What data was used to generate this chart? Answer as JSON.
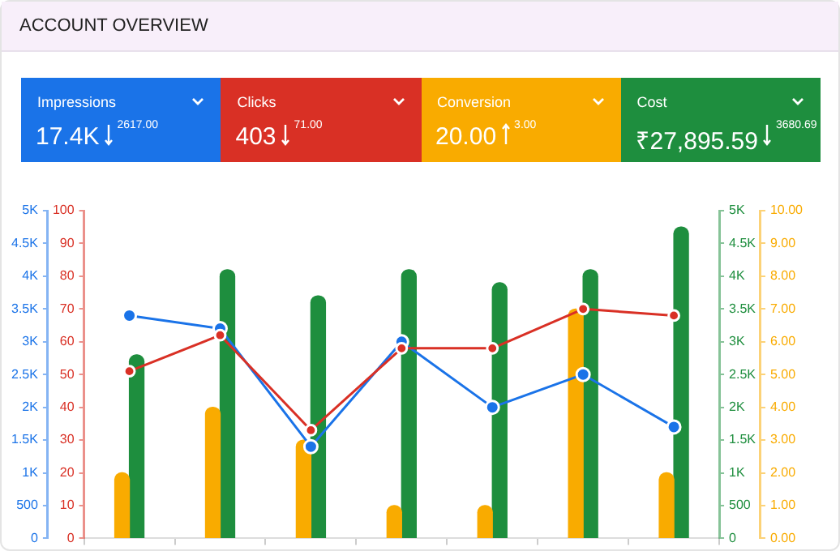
{
  "chart_data": [
    {
      "type": "other",
      "title": "ACCOUNT OVERVIEW",
      "colors": [
        "#1a73e8",
        "#d93025",
        "#f9ab00",
        "#1e8e3e"
      ],
      "annotations": [
        "Impressions",
        "17.4K",
        "2617.00",
        "Clicks",
        "403",
        "71.00",
        "Conversion",
        "20.00",
        "3.00",
        "Cost",
        "₹27,895.59",
        "3680.69"
      ]
    },
    {
      "type": "bar",
      "categories": [
        null,
        null,
        null,
        null,
        null,
        null,
        null
      ],
      "tick_labels": "y",
      "marker": "circle",
      "series": [
        {
          "type": "line",
          "axis": "y",
          "color": "#1a73e8",
          "values": [
            3400,
            3200,
            1400,
            3000,
            2000,
            2500,
            1700
          ]
        },
        {
          "type": "line",
          "axis": "y2",
          "color": "#d93025",
          "values": [
            51,
            62,
            33,
            58,
            58,
            70,
            68
          ]
        },
        {
          "axis": "y3",
          "color": "#f9ab00",
          "values": [
            2,
            4,
            3,
            1,
            1,
            7,
            2
          ]
        },
        {
          "color": "#1e8e3e",
          "values": [
            2800,
            4100,
            3700,
            4100,
            3900,
            4100,
            4750
          ]
        }
      ],
      "ylim": [
        0,
        5000
      ],
      "yticks": [
        {
          "value": 0,
          "label": "0"
        },
        {
          "value": 500,
          "label": "500"
        },
        {
          "value": 1000,
          "label": "1K"
        },
        {
          "value": 1500,
          "label": "1.5K"
        },
        {
          "value": 2000,
          "label": "2K"
        },
        {
          "value": 2500,
          "label": "2.5K"
        },
        {
          "value": 3000,
          "label": "3K"
        },
        {
          "value": 3500,
          "label": "3.5K"
        },
        {
          "value": 4000,
          "label": "4K"
        },
        {
          "value": 4500,
          "label": "4.5K"
        },
        {
          "value": 5000,
          "label": "5K"
        }
      ],
      "y2lim": [
        0,
        100
      ],
      "y2ticks": [
        0,
        10,
        20,
        30,
        40,
        50,
        60,
        70,
        80,
        90,
        100
      ],
      "y3lim": [
        0,
        10
      ],
      "y3ticks": [
        {
          "value": 0,
          "label": "0.00"
        },
        {
          "value": 1,
          "label": "1.00"
        },
        {
          "value": 2,
          "label": "2.00"
        },
        {
          "value": 3,
          "label": "3.00"
        },
        {
          "value": 4,
          "label": "4.00"
        },
        {
          "value": 5,
          "label": "5.00"
        },
        {
          "value": 6,
          "label": "6.00"
        },
        {
          "value": 7,
          "label": "7.00"
        },
        {
          "value": 8,
          "label": "8.00"
        },
        {
          "value": 9,
          "label": "9.00"
        },
        {
          "value": 10,
          "label": "10.00"
        }
      ]
    }
  ]
}
